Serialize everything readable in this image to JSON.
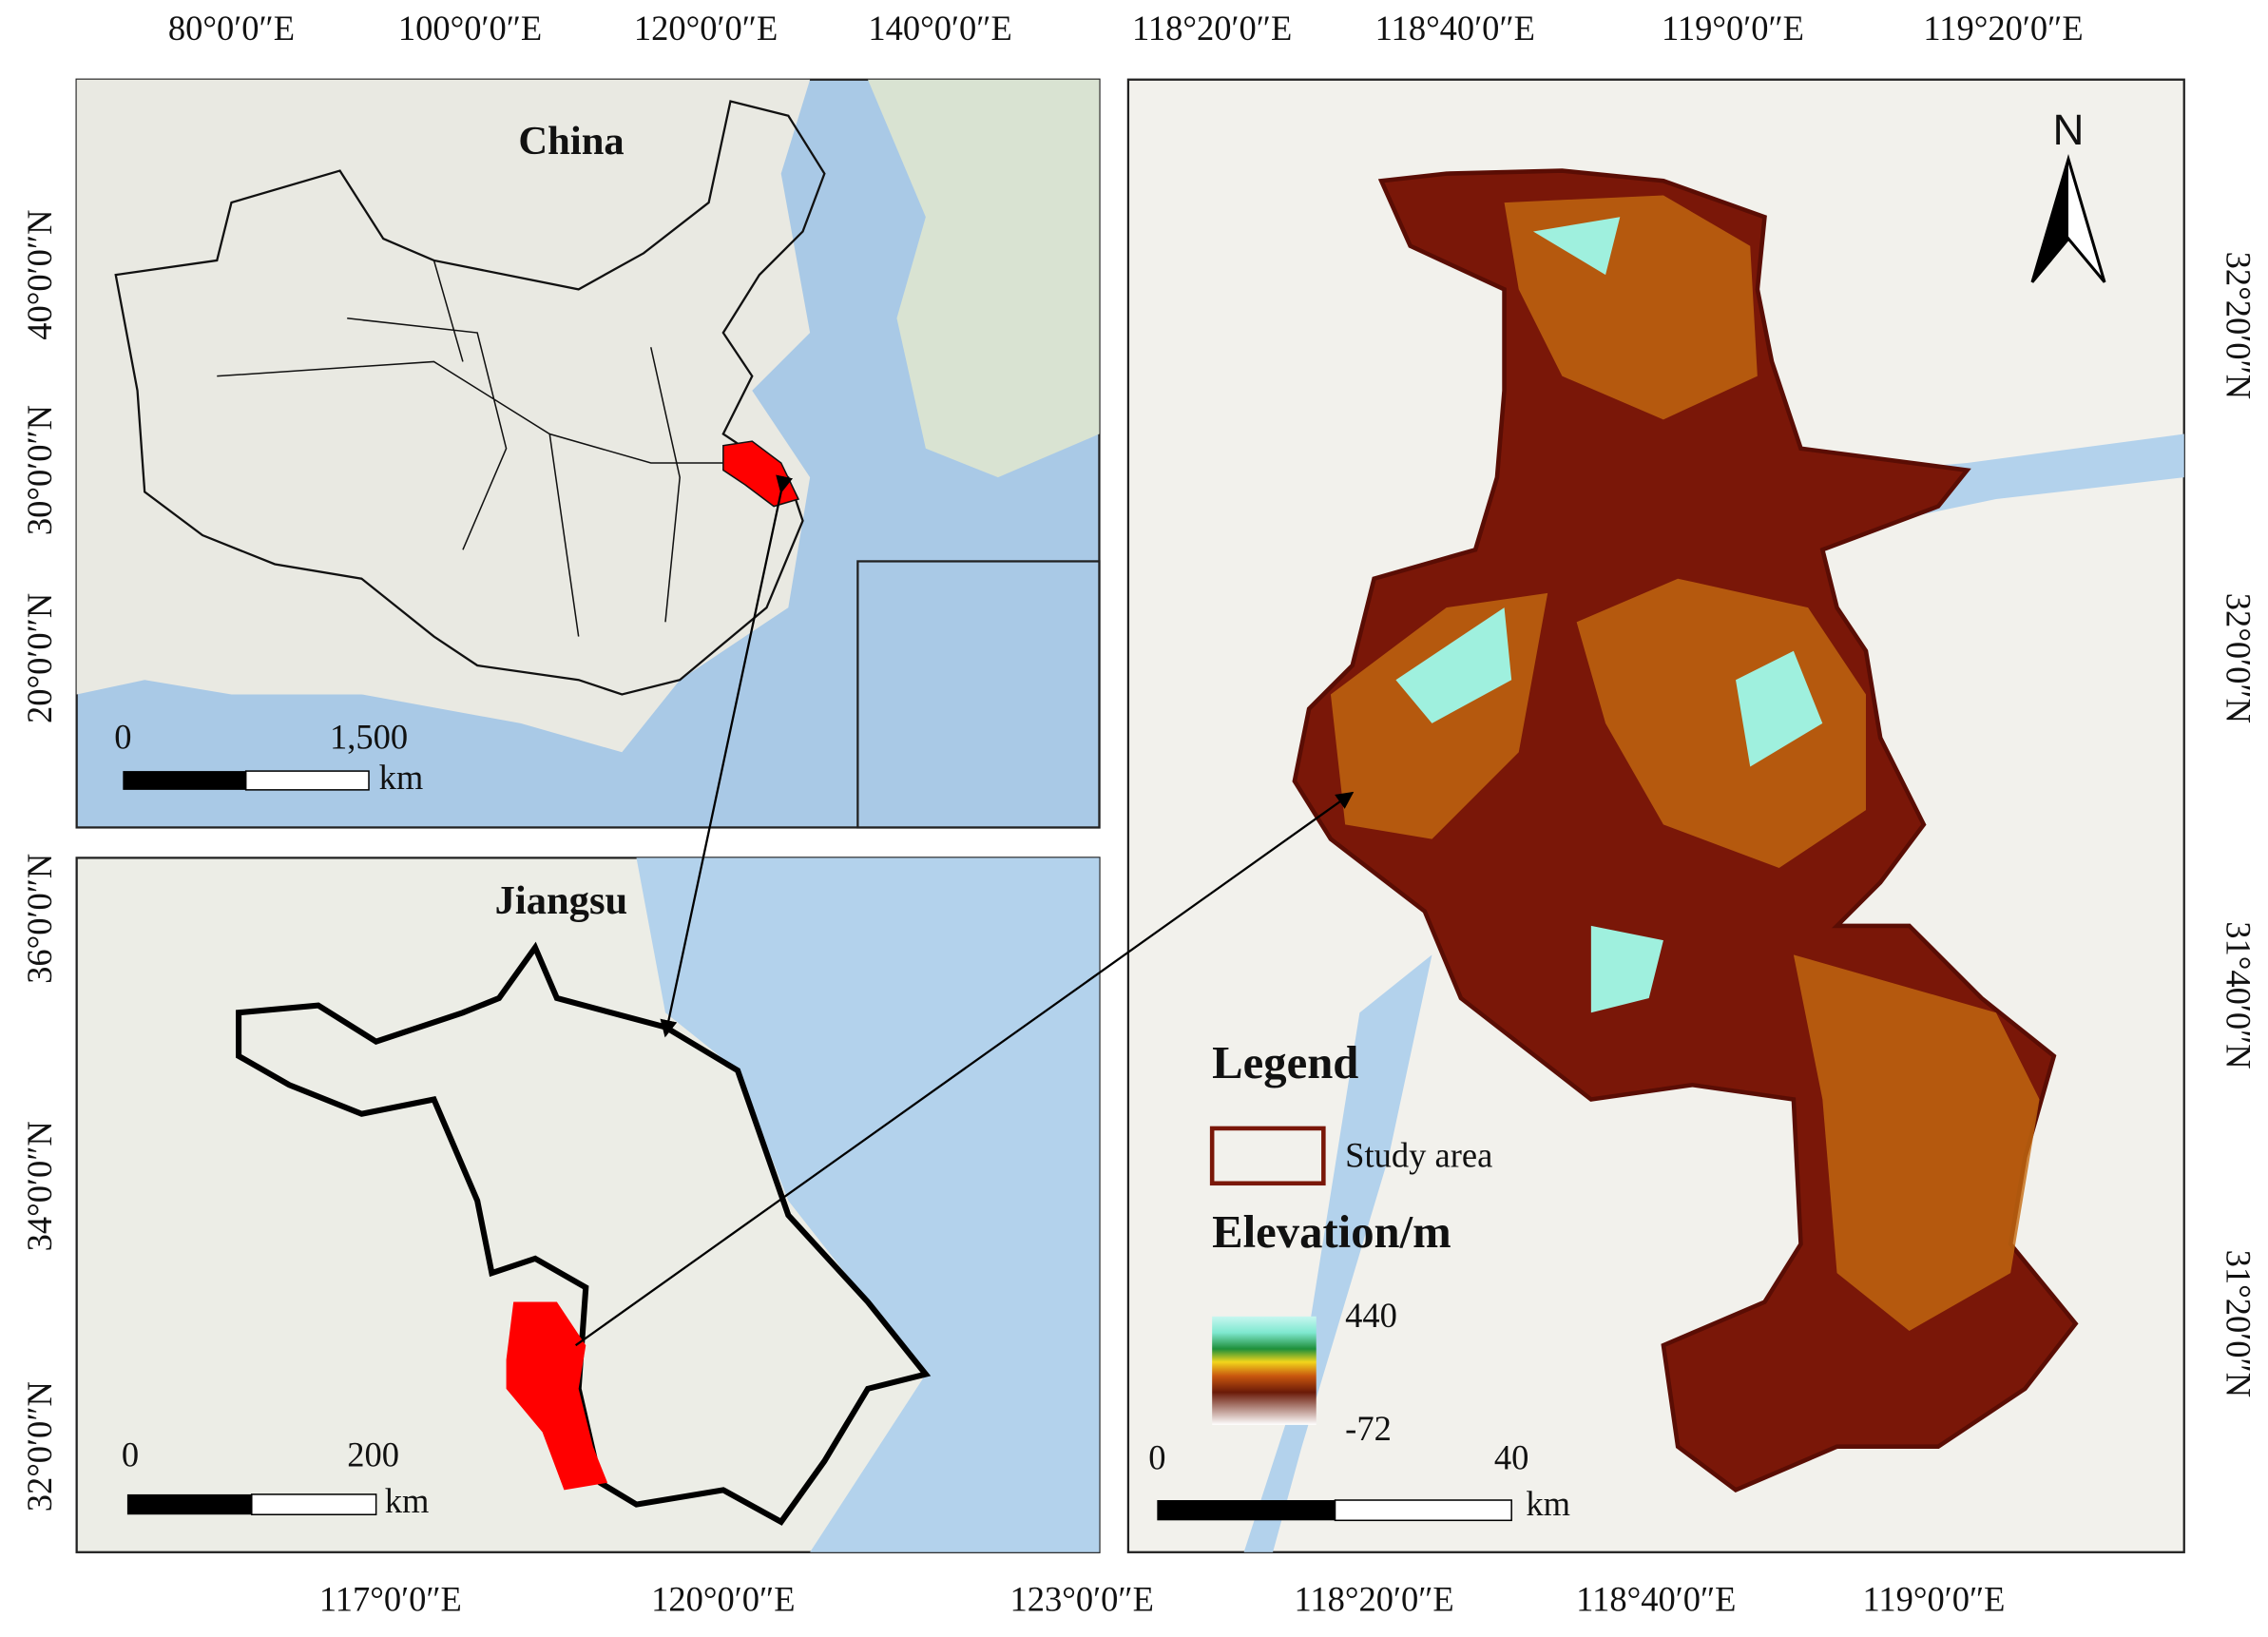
{
  "china_panel": {
    "title": "China",
    "top_ticks": [
      "80°0′0″E",
      "100°0′0″E",
      "120°0′0″E",
      "140°0′0″E"
    ],
    "left_ticks": [
      "40°0′0″N",
      "30°0′0″N",
      "20°0′0″N"
    ],
    "scale_bar": {
      "start": "0",
      "end": "1,500",
      "unit": "km"
    }
  },
  "jiangsu_panel": {
    "title": "Jiangsu",
    "bottom_ticks": [
      "117°0′0″E",
      "120°0′0″E",
      "123°0′0″E"
    ],
    "left_ticks": [
      "36°0′0″N",
      "34°0′0″N",
      "32°0′0″N"
    ],
    "scale_bar": {
      "start": "0",
      "end": "200",
      "unit": "km"
    }
  },
  "study_panel": {
    "top_ticks": [
      "118°20′0″E",
      "118°40′0″E",
      "119°0′0″E",
      "119°20′0″E"
    ],
    "bottom_ticks": [
      "118°20′0″E",
      "118°40′0″E",
      "119°0′0″E"
    ],
    "right_ticks": [
      "32°20′0″N",
      "32°0′0″N",
      "31°40′0″N",
      "31°20′0″N"
    ],
    "north": "N",
    "legend": {
      "title": "Legend",
      "boundary": "Study area",
      "elevation_title": "Elevation/m",
      "max": "440",
      "min": "-72"
    },
    "scale_bar": {
      "start": "0",
      "end": "40",
      "unit": "km"
    }
  }
}
